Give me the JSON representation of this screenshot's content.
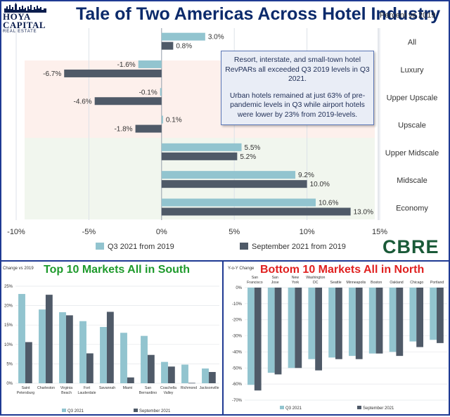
{
  "logo": {
    "name": "HOYA CAPITAL",
    "sub": "REAL ESTATE"
  },
  "header": {
    "title": "Tale of Two Americas Across Hotel Industry",
    "subtitle": "Percent vs 2019"
  },
  "callout": {
    "p1": "Resort, interstate, and small-town hotel RevPARs all exceeded Q3 2019 levels in Q3 2021.",
    "p2": "Urban hotels remained at just 63% of pre-pandemic levels in Q3 while airport hotels were lower by 23% from 2019-levels."
  },
  "brand": "CBRE",
  "colors": {
    "light": "#92c4cf",
    "dark": "#4f5a68",
    "bg_pink": "#fdf0ec",
    "bg_green": "#f1f6ee",
    "title_blue": "#0b2a6b",
    "title_green": "#1e9a2c",
    "title_red": "#e0201f"
  },
  "chart_data": [
    {
      "type": "bar",
      "orientation": "horizontal",
      "categories": [
        "All",
        "Luxury",
        "Upper Upscale",
        "Upscale",
        "Upper Midscale",
        "Midscale",
        "Economy"
      ],
      "series": [
        {
          "name": "Q3 2021 from 2019",
          "values": [
            3.0,
            -1.6,
            -0.1,
            0.1,
            5.5,
            9.2,
            10.6
          ],
          "labels": [
            "3.0%",
            "-1.6%",
            "-0.1%",
            "0.1%",
            "5.5%",
            "9.2%",
            "10.6%"
          ]
        },
        {
          "name": "September 2021 from 2019",
          "values": [
            0.8,
            -6.7,
            -4.6,
            -1.8,
            5.2,
            10.0,
            13.0
          ],
          "labels": [
            "0.8%",
            "-6.7%",
            "-4.6%",
            "-1.8%",
            "5.2%",
            "10.0%",
            "13.0%"
          ]
        }
      ],
      "xlim": [
        -10,
        15
      ],
      "xticks": [
        "-10%",
        "-5%",
        "0%",
        "5%",
        "10%",
        "15%"
      ],
      "title": "Tale of Two Americas Across Hotel Industry"
    },
    {
      "type": "bar",
      "title": "Top 10 Markets All in South",
      "ylabel": "Change vs 2019",
      "categories": [
        "Saint Petersburg",
        "Charleston",
        "Virginia Beach",
        "Fort Lauderdale",
        "Savannah",
        "Miami",
        "San Bernardino",
        "Coachella Valley",
        "Richmond",
        "Jacksonville"
      ],
      "series": [
        {
          "name": "Q3 2021",
          "values": [
            23,
            19,
            18.3,
            16,
            14.5,
            13,
            12.2,
            5.5,
            4.8,
            3.8
          ]
        },
        {
          "name": "September 2021",
          "values": [
            10.6,
            22.8,
            17.5,
            7.7,
            18.4,
            1.5,
            7.3,
            4.3,
            0.1,
            2.9
          ]
        }
      ],
      "ylim": [
        0,
        25
      ],
      "yticks": [
        "0%",
        "5%",
        "10%",
        "15%",
        "20%",
        "25%"
      ]
    },
    {
      "type": "bar",
      "title": "Bottom 10 Markets All in North",
      "ylabel": "Y-o-Y Change",
      "categories": [
        "San Francisco",
        "San Jose",
        "New York",
        "Washington DC",
        "Seattle",
        "Minneapolis",
        "Boston",
        "Oakland",
        "Chicago",
        "Portland"
      ],
      "series": [
        {
          "name": "Q3 2021",
          "values": [
            -60.5,
            -53,
            -50,
            -44.5,
            -43.5,
            -42.5,
            -41,
            -40,
            -33.5,
            -32.5
          ]
        },
        {
          "name": "September 2021",
          "values": [
            -64,
            -54,
            -50,
            -51.5,
            -44.5,
            -44.5,
            -41,
            -42.5,
            -37,
            -34.5
          ]
        }
      ],
      "ylim": [
        -70,
        0
      ],
      "yticks": [
        "0%",
        "-10%",
        "-20%",
        "-30%",
        "-40%",
        "-50%",
        "-60%",
        "-70%"
      ]
    }
  ]
}
